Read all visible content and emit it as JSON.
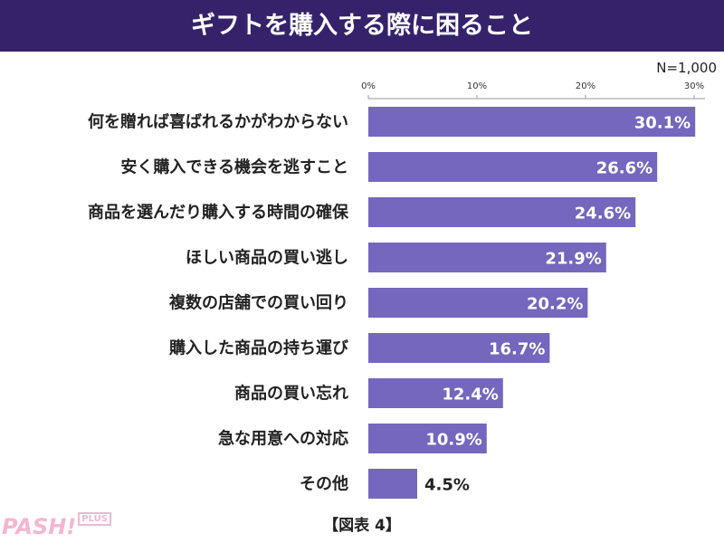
{
  "header": {
    "title": "ギフトを購入する際に困ること"
  },
  "caption": "【図表 4】",
  "logo": {
    "main": "PASH!+",
    "sub": "PLUS"
  },
  "colors": {
    "title_bg": "#35226b",
    "bar": "#7467bd",
    "logo": "#f4b6d2"
  },
  "chart_data": {
    "type": "bar",
    "orientation": "horizontal",
    "title": "ギフトを購入する際に困ること",
    "note": "N=1,000",
    "categories": [
      "何を贈れば喜ばれるかがわからない",
      "安く購入できる機会を逃すこと",
      "商品を選んだり購入する時間の確保",
      "ほしい商品の買い逃し",
      "複数の店舗での買い回り",
      "購入した商品の持ち運び",
      "商品の買い忘れ",
      "急な用意への対応",
      "その他"
    ],
    "values": [
      30.1,
      26.6,
      24.6,
      21.9,
      20.2,
      16.7,
      12.4,
      10.9,
      4.5
    ],
    "value_labels": [
      "30.1%",
      "26.6%",
      "24.6%",
      "21.9%",
      "20.2%",
      "16.7%",
      "12.4%",
      "10.9%",
      "4.5%"
    ],
    "xticks": [
      0,
      10,
      20,
      30
    ],
    "xtick_labels": [
      "0%",
      "10%",
      "20%",
      "30%"
    ],
    "xlim": [
      0,
      31
    ],
    "axis_position": "top",
    "grid": false
  }
}
